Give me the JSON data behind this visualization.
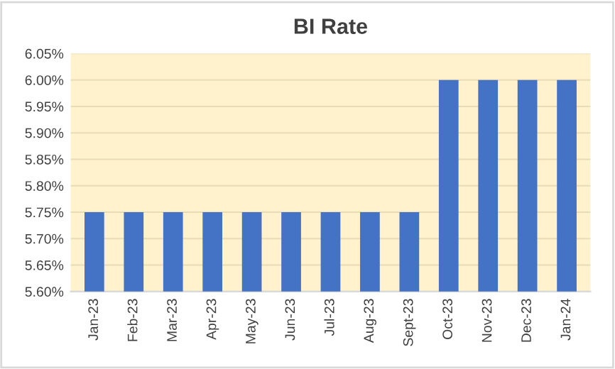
{
  "chart_data": {
    "type": "bar",
    "title": "BI Rate",
    "categories": [
      "Jan-23",
      "Feb-23",
      "Mar-23",
      "Apr-23",
      "May-23",
      "Jun-23",
      "Jul-23",
      "Aug-23",
      "Sept-23",
      "Oct-23",
      "Nov-23",
      "Dec-23",
      "Jan-24"
    ],
    "values": [
      5.75,
      5.75,
      5.75,
      5.75,
      5.75,
      5.75,
      5.75,
      5.75,
      5.75,
      6.0,
      6.0,
      6.0,
      6.0
    ],
    "color": "#4472c4",
    "ylim": [
      5.6,
      6.05
    ],
    "yticks": [
      {
        "value": 5.6,
        "label": "5.60%"
      },
      {
        "value": 5.65,
        "label": "5.65%"
      },
      {
        "value": 5.7,
        "label": "5.70%"
      },
      {
        "value": 5.75,
        "label": "5.75%"
      },
      {
        "value": 5.8,
        "label": "5.80%"
      },
      {
        "value": 5.85,
        "label": "5.85%"
      },
      {
        "value": 5.9,
        "label": "5.90%"
      },
      {
        "value": 5.95,
        "label": "5.95%"
      },
      {
        "value": 6.0,
        "label": "6.00%"
      },
      {
        "value": 6.05,
        "label": "6.05%"
      }
    ],
    "grid": "y"
  }
}
